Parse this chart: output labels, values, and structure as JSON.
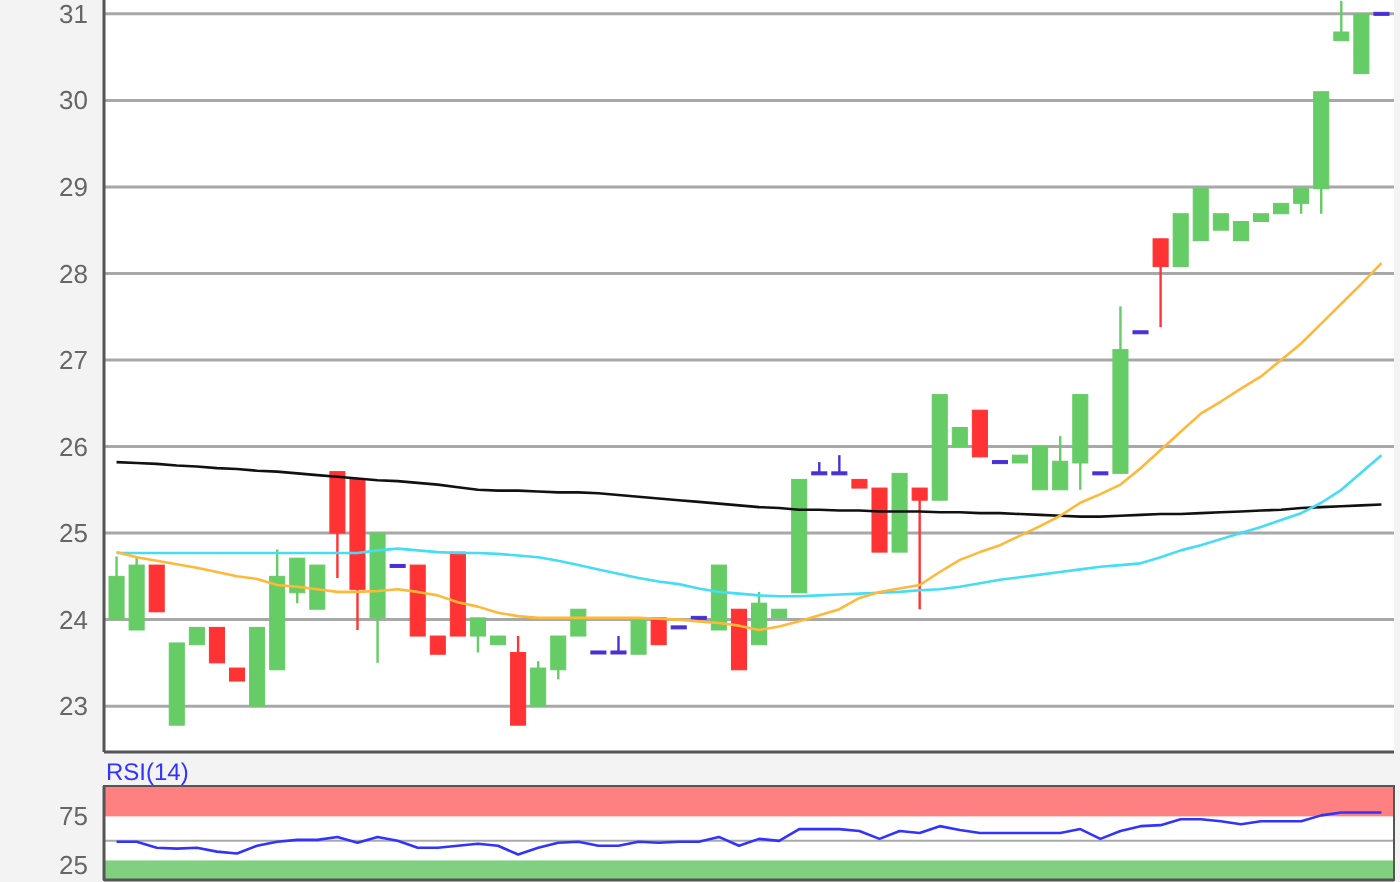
{
  "chart_data": [
    {
      "type": "candlestick",
      "categories": [
        null,
        null,
        null,
        null,
        null,
        null,
        null,
        null,
        null,
        null,
        null,
        null,
        null,
        null,
        null,
        null,
        null,
        null,
        null,
        null,
        null,
        null,
        null,
        null,
        null,
        null,
        null,
        null,
        null,
        null,
        null,
        null,
        null,
        null,
        null,
        null,
        null,
        null,
        null,
        null,
        null,
        null,
        null,
        null,
        null,
        null,
        null,
        null,
        null,
        null,
        null,
        null,
        null,
        null,
        null,
        null,
        null,
        null,
        null,
        null,
        null,
        null,
        null,
        null
      ],
      "ohlc": [
        [
          24.0,
          24.73,
          24.0,
          24.5
        ],
        [
          23.88,
          24.73,
          23.88,
          24.63
        ],
        [
          24.63,
          24.63,
          24.09,
          24.09
        ],
        [
          22.78,
          23.73,
          22.78,
          23.73
        ],
        [
          23.71,
          23.91,
          23.71,
          23.91
        ],
        [
          23.91,
          23.91,
          23.5,
          23.5
        ],
        [
          23.44,
          23.44,
          23.29,
          23.29
        ],
        [
          23.0,
          23.91,
          23.0,
          23.91
        ],
        [
          23.42,
          24.81,
          23.42,
          24.5
        ],
        [
          24.31,
          24.71,
          24.19,
          24.71
        ],
        [
          24.12,
          24.63,
          24.12,
          24.63
        ],
        [
          25.71,
          25.71,
          24.48,
          25.0
        ],
        [
          25.63,
          25.63,
          23.88,
          24.35
        ],
        [
          24.02,
          25.0,
          23.5,
          25.0
        ],
        [
          24.62,
          24.62,
          24.62,
          24.62
        ],
        [
          24.63,
          24.63,
          23.81,
          23.81
        ],
        [
          23.81,
          23.81,
          23.6,
          23.6
        ],
        [
          24.78,
          24.78,
          23.81,
          23.81
        ],
        [
          23.81,
          24.02,
          23.62,
          24.02
        ],
        [
          23.71,
          23.81,
          23.71,
          23.81
        ],
        [
          23.62,
          23.81,
          22.78,
          22.78
        ],
        [
          23.0,
          23.52,
          23.0,
          23.44
        ],
        [
          23.42,
          23.81,
          23.31,
          23.81
        ],
        [
          23.81,
          24.12,
          23.81,
          24.12
        ],
        [
          23.62,
          23.62,
          23.62,
          23.62
        ],
        [
          23.62,
          23.81,
          23.62,
          23.62
        ],
        [
          23.6,
          24.02,
          23.6,
          24.02
        ],
        [
          24.02,
          24.02,
          23.71,
          23.71
        ],
        [
          23.91,
          23.91,
          23.91,
          23.91
        ],
        [
          24.02,
          24.02,
          24.02,
          24.02
        ],
        [
          23.88,
          24.63,
          23.88,
          24.63
        ],
        [
          24.12,
          24.12,
          23.42,
          23.42
        ],
        [
          23.71,
          24.32,
          23.71,
          24.19
        ],
        [
          24.02,
          24.12,
          24.02,
          24.12
        ],
        [
          24.31,
          25.62,
          24.31,
          25.62
        ],
        [
          25.69,
          25.82,
          25.69,
          25.69
        ],
        [
          25.69,
          25.9,
          25.69,
          25.69
        ],
        [
          25.62,
          25.62,
          25.52,
          25.52
        ],
        [
          25.52,
          25.52,
          24.78,
          24.78
        ],
        [
          24.78,
          25.69,
          24.78,
          25.69
        ],
        [
          25.52,
          25.52,
          24.12,
          25.38
        ],
        [
          25.38,
          26.6,
          25.38,
          26.6
        ],
        [
          26.0,
          26.22,
          26.0,
          26.22
        ],
        [
          26.42,
          26.42,
          25.88,
          25.88
        ],
        [
          25.82,
          25.82,
          25.82,
          25.82
        ],
        [
          25.81,
          25.9,
          25.81,
          25.9
        ],
        [
          25.5,
          26.0,
          25.5,
          26.0
        ],
        [
          25.5,
          26.12,
          25.5,
          25.83
        ],
        [
          25.81,
          26.6,
          25.5,
          26.6
        ],
        [
          25.69,
          25.69,
          25.69,
          25.69
        ],
        [
          25.69,
          27.62,
          25.69,
          27.12
        ],
        [
          27.32,
          27.32,
          27.32,
          27.32
        ],
        [
          28.4,
          28.4,
          27.38,
          28.08
        ],
        [
          28.08,
          28.69,
          28.08,
          28.69
        ],
        [
          28.38,
          28.98,
          28.38,
          28.98
        ],
        [
          28.5,
          28.69,
          28.5,
          28.69
        ],
        [
          28.38,
          28.6,
          28.38,
          28.6
        ],
        [
          28.6,
          28.69,
          28.6,
          28.69
        ],
        [
          28.69,
          28.81,
          28.69,
          28.81
        ],
        [
          28.81,
          28.98,
          28.69,
          28.98
        ],
        [
          28.98,
          30.1,
          28.69,
          30.1
        ],
        [
          30.69,
          31.15,
          30.69,
          30.79
        ],
        [
          30.31,
          31.0,
          30.31,
          31.0
        ],
        [
          31.0,
          31.0,
          31.0,
          31.0
        ]
      ],
      "colors": [
        "#66cc66",
        "#66cc66",
        "#ff3333",
        "#66cc66",
        "#66cc66",
        "#ff3333",
        "#ff3333",
        "#66cc66",
        "#66cc66",
        "#66cc66",
        "#66cc66",
        "#ff3333",
        "#ff3333",
        "#66cc66",
        "#4a2fd6",
        "#ff3333",
        "#ff3333",
        "#ff3333",
        "#66cc66",
        "#66cc66",
        "#ff3333",
        "#66cc66",
        "#66cc66",
        "#66cc66",
        "#4a2fd6",
        "#4a2fd6",
        "#66cc66",
        "#ff3333",
        "#4a2fd6",
        "#4a2fd6",
        "#66cc66",
        "#ff3333",
        "#66cc66",
        "#66cc66",
        "#66cc66",
        "#4a2fd6",
        "#4a2fd6",
        "#ff3333",
        "#ff3333",
        "#66cc66",
        "#ff3333",
        "#66cc66",
        "#66cc66",
        "#ff3333",
        "#4a2fd6",
        "#66cc66",
        "#66cc66",
        "#66cc66",
        "#66cc66",
        "#4a2fd6",
        "#66cc66",
        "#4a2fd6",
        "#ff3333",
        "#66cc66",
        "#66cc66",
        "#66cc66",
        "#66cc66",
        "#66cc66",
        "#66cc66",
        "#66cc66",
        "#66cc66",
        "#66cc66",
        "#66cc66",
        "#4a2fd6"
      ],
      "series": [
        {
          "type": "line",
          "color": "#111111",
          "values": [
            25.82,
            25.81,
            25.8,
            25.78,
            25.77,
            25.75,
            25.74,
            25.72,
            25.71,
            25.69,
            25.67,
            25.65,
            25.63,
            25.61,
            25.6,
            25.58,
            25.56,
            25.53,
            25.5,
            25.49,
            25.49,
            25.48,
            25.47,
            25.47,
            25.46,
            25.44,
            25.42,
            25.4,
            25.38,
            25.36,
            25.34,
            25.32,
            25.3,
            25.29,
            25.27,
            25.27,
            25.26,
            25.26,
            25.25,
            25.25,
            25.25,
            25.24,
            25.24,
            25.23,
            25.23,
            25.22,
            25.21,
            25.2,
            25.19,
            25.19,
            25.2,
            25.21,
            25.22,
            25.22,
            25.23,
            25.24,
            25.25,
            25.26,
            25.27,
            25.29,
            25.3,
            25.31,
            25.32,
            25.33
          ]
        },
        {
          "type": "line",
          "color": "#44ddf5",
          "values": [
            24.77,
            24.77,
            24.77,
            24.77,
            24.77,
            24.77,
            24.77,
            24.77,
            24.77,
            24.77,
            24.77,
            24.77,
            24.77,
            24.8,
            24.82,
            24.8,
            24.78,
            24.77,
            24.77,
            24.76,
            24.74,
            24.72,
            24.68,
            24.63,
            24.58,
            24.53,
            24.48,
            24.44,
            24.41,
            24.36,
            24.32,
            24.3,
            24.28,
            24.27,
            24.27,
            24.28,
            24.29,
            24.3,
            24.31,
            24.32,
            24.34,
            24.35,
            24.38,
            24.42,
            24.46,
            24.49,
            24.52,
            24.55,
            24.58,
            24.61,
            24.63,
            24.65,
            24.72,
            24.8,
            24.86,
            24.93,
            25.0,
            25.07,
            25.15,
            25.23,
            25.35,
            25.5,
            25.7,
            25.9
          ]
        },
        {
          "type": "line",
          "color": "#ffb838",
          "values": [
            24.78,
            24.72,
            24.68,
            24.64,
            24.6,
            24.55,
            24.5,
            24.47,
            24.4,
            24.38,
            24.35,
            24.32,
            24.32,
            24.33,
            24.35,
            24.32,
            24.28,
            24.2,
            24.15,
            24.08,
            24.04,
            24.02,
            24.02,
            24.02,
            24.02,
            24.02,
            24.02,
            24.01,
            24.0,
            23.98,
            23.96,
            23.93,
            23.88,
            23.92,
            23.98,
            24.05,
            24.12,
            24.25,
            24.32,
            24.36,
            24.4,
            24.55,
            24.69,
            24.78,
            24.86,
            24.97,
            25.08,
            25.2,
            25.35,
            25.45,
            25.56,
            25.75,
            25.96,
            26.17,
            26.38,
            26.52,
            26.67,
            26.81,
            27.0,
            27.19,
            27.42,
            27.65,
            27.88,
            28.12
          ]
        }
      ],
      "ylim": [
        22.47,
        31.16
      ],
      "yticks": [
        23,
        24,
        25,
        26,
        27,
        28,
        29,
        30,
        31
      ],
      "grid": "y",
      "tick_labels": "y"
    },
    {
      "type": "line",
      "title": "RSI(14)",
      "categories": [
        null,
        null,
        null,
        null,
        null,
        null,
        null,
        null,
        null,
        null,
        null,
        null,
        null,
        null,
        null,
        null,
        null,
        null,
        null,
        null,
        null,
        null,
        null,
        null,
        null,
        null,
        null,
        null,
        null,
        null,
        null,
        null,
        null,
        null,
        null,
        null,
        null,
        null,
        null,
        null,
        null,
        null,
        null,
        null,
        null,
        null,
        null,
        null,
        null,
        null,
        null,
        null,
        null,
        null,
        null,
        null,
        null,
        null,
        null,
        null,
        null,
        null,
        null,
        null
      ],
      "series": [
        {
          "color": "#3333ff",
          "values": [
            49,
            49,
            43,
            42,
            43,
            39,
            37,
            45,
            49,
            51,
            51,
            54,
            48,
            54,
            50,
            43,
            43,
            45,
            47,
            45,
            36,
            43,
            48,
            49,
            45,
            45,
            49,
            48,
            49,
            49,
            54,
            45,
            52,
            50,
            62,
            62,
            62,
            60,
            52,
            60,
            58,
            65,
            61,
            58,
            58,
            58,
            58,
            58,
            62,
            52,
            60,
            65,
            66,
            72,
            72,
            70,
            67,
            70,
            70,
            70,
            76,
            79,
            79,
            79
          ]
        }
      ],
      "ylim": [
        10,
        106
      ],
      "yticks": [
        25,
        75
      ],
      "tick_labels": "y",
      "bands": [
        {
          "axis": "y",
          "from": 75,
          "to": 106,
          "color": "#ff8080"
        },
        {
          "axis": "y",
          "from": 10,
          "to": 30,
          "color": "#80d080"
        }
      ],
      "ref_lines": [
        {
          "axis": "y",
          "value": 50,
          "color": "#aaaaaa"
        }
      ]
    }
  ]
}
